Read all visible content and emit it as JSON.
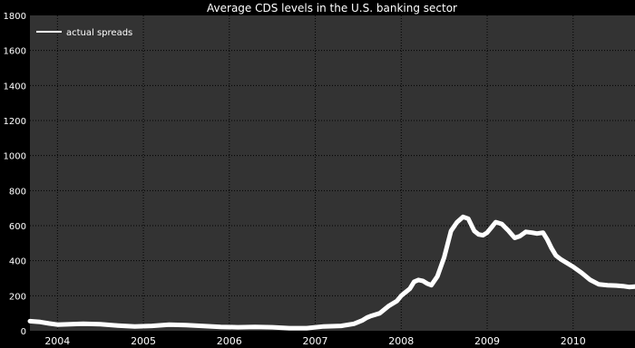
{
  "chart_data": {
    "type": "line",
    "title": "Average CDS levels in the U.S. banking sector",
    "xlabel": "",
    "ylabel": "",
    "xlim": [
      2003.68,
      2010.72
    ],
    "ylim": [
      0,
      1800
    ],
    "x_ticks": [
      2004,
      2005,
      2006,
      2007,
      2008,
      2009,
      2010
    ],
    "x_tick_labels": [
      "2004",
      "2005",
      "2006",
      "2007",
      "2008",
      "2009",
      "2010"
    ],
    "y_ticks": [
      0,
      200,
      400,
      600,
      800,
      1000,
      1200,
      1400,
      1600,
      1800
    ],
    "y_tick_labels": [
      "0",
      "200",
      "400",
      "600",
      "800",
      "1000",
      "1200",
      "1400",
      "1600",
      "1800"
    ],
    "grid": true,
    "legend_position": "top-left",
    "background_color": "#333333",
    "grid_color": "#000000",
    "text_color": "#ffffff",
    "series": [
      {
        "name": "actual spreads",
        "color": "#ffffff",
        "x": [
          2003.68,
          2003.8,
          2003.9,
          2004.0,
          2004.15,
          2004.3,
          2004.5,
          2004.7,
          2004.9,
          2005.1,
          2005.3,
          2005.5,
          2005.7,
          2005.9,
          2006.1,
          2006.3,
          2006.5,
          2006.7,
          2006.9,
          2007.1,
          2007.3,
          2007.45,
          2007.55,
          2007.6,
          2007.65,
          2007.75,
          2007.85,
          2007.95,
          2008.0,
          2008.05,
          2008.1,
          2008.15,
          2008.2,
          2008.25,
          2008.3,
          2008.35,
          2008.42,
          2008.5,
          2008.58,
          2008.65,
          2008.72,
          2008.78,
          2008.85,
          2008.9,
          2008.95,
          2009.0,
          2009.05,
          2009.1,
          2009.17,
          2009.25,
          2009.32,
          2009.38,
          2009.45,
          2009.52,
          2009.58,
          2009.65,
          2009.7,
          2009.75,
          2009.8,
          2009.85,
          2009.9,
          2010.0,
          2010.1,
          2010.2,
          2010.3,
          2010.4,
          2010.5,
          2010.58,
          2010.65,
          2010.72
        ],
        "y": [
          55,
          50,
          42,
          35,
          38,
          40,
          37,
          30,
          25,
          28,
          35,
          32,
          27,
          22,
          20,
          22,
          20,
          15,
          15,
          25,
          28,
          40,
          60,
          75,
          85,
          100,
          140,
          170,
          200,
          220,
          240,
          280,
          290,
          285,
          270,
          260,
          310,
          420,
          570,
          620,
          650,
          640,
          570,
          550,
          545,
          560,
          590,
          620,
          610,
          570,
          530,
          540,
          565,
          560,
          555,
          560,
          520,
          470,
          430,
          410,
          395,
          365,
          330,
          290,
          265,
          260,
          258,
          255,
          250,
          252
        ]
      }
    ]
  }
}
